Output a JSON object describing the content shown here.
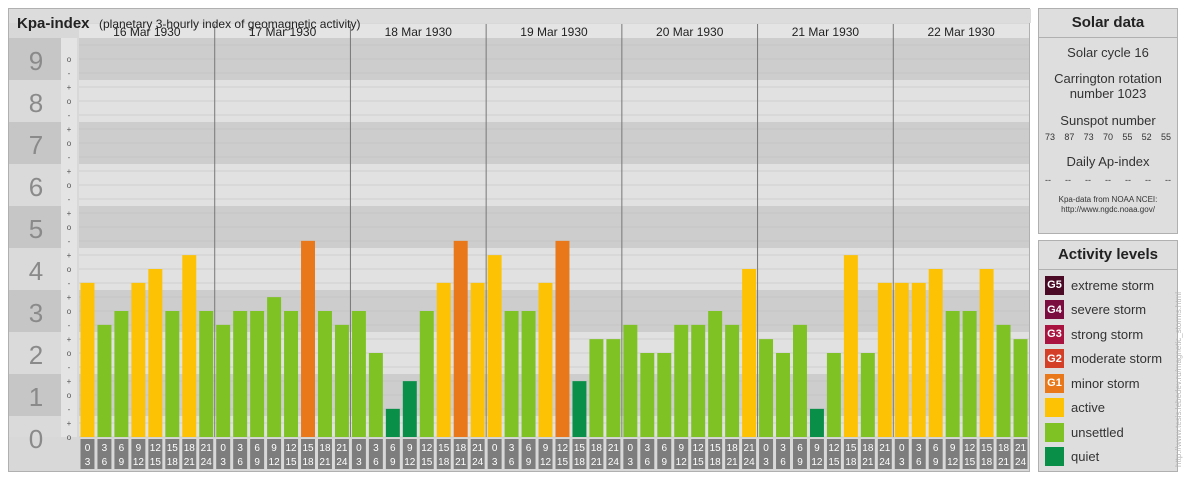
{
  "header": {
    "title": "Kpa-index",
    "subtitle": "(planetary 3-hourly index of geomagnetic activity)"
  },
  "chart_data": {
    "type": "bar",
    "ylim": [
      0,
      9
    ],
    "y_major_ticks": [
      "0",
      "1",
      "2",
      "3",
      "4",
      "5",
      "6",
      "7",
      "8",
      "9"
    ],
    "y_minor_ticks": [
      "-",
      "o",
      "+"
    ],
    "days": [
      "16 Mar 1930",
      "17 Mar 1930",
      "18 Mar 1930",
      "19 Mar 1930",
      "20 Mar 1930",
      "21 Mar 1930",
      "22 Mar 1930"
    ],
    "interval_top": [
      "0",
      "3",
      "6",
      "9",
      "12",
      "15",
      "18",
      "21"
    ],
    "interval_bottom": [
      "3",
      "6",
      "9",
      "12",
      "15",
      "18",
      "21",
      "24"
    ],
    "values": [
      [
        3.67,
        2.67,
        3.0,
        3.67,
        4.0,
        3.0,
        4.33,
        3.0
      ],
      [
        2.67,
        3.0,
        3.0,
        3.33,
        3.0,
        4.67,
        3.0,
        2.67
      ],
      [
        3.0,
        2.0,
        0.67,
        1.33,
        3.0,
        3.67,
        4.67,
        3.67
      ],
      [
        4.33,
        3.0,
        3.0,
        3.67,
        4.67,
        1.33,
        2.33,
        2.33
      ],
      [
        2.67,
        2.0,
        2.0,
        2.67,
        2.67,
        3.0,
        2.67,
        4.0
      ],
      [
        2.33,
        2.0,
        2.67,
        0.67,
        2.0,
        4.33,
        2.0,
        3.67
      ],
      [
        3.67,
        3.67,
        4.0,
        3.0,
        3.0,
        4.0,
        2.67,
        2.33
      ]
    ],
    "colors": {
      "quiet": "#0a8f48",
      "unsettled": "#7ec224",
      "active": "#fdc203",
      "minor_storm": "#e8781a",
      "moderate_storm": "#d43f27",
      "strong_storm": "#a9133f",
      "severe_storm": "#7b0c40",
      "extreme_storm": "#4a0a26"
    }
  },
  "solar": {
    "title": "Solar data",
    "cycle": "Solar cycle 16",
    "carrington_line1": "Carrington rotation",
    "carrington_line2": "number 1023",
    "sunspot_title": "Sunspot number",
    "sunspots": [
      "73",
      "87",
      "73",
      "70",
      "55",
      "52",
      "55"
    ],
    "ap_title": "Daily Ap-index",
    "ap_values": [
      "--",
      "--",
      "--",
      "--",
      "--",
      "--",
      "--"
    ],
    "source_line1": "Kpa-data from NOAA NCEI:",
    "source_line2": "http://www.ngdc.noaa.gov/"
  },
  "activity": {
    "title": "Activity levels",
    "levels": [
      {
        "badge": "G5",
        "label": "extreme storm",
        "color": "#4a0a26"
      },
      {
        "badge": "G4",
        "label": "severe storm",
        "color": "#7b0c40"
      },
      {
        "badge": "G3",
        "label": "strong storm",
        "color": "#a9133f"
      },
      {
        "badge": "G2",
        "label": "moderate storm",
        "color": "#d43f27"
      },
      {
        "badge": "G1",
        "label": "minor storm",
        "color": "#e8781a"
      },
      {
        "badge": "",
        "label": "active",
        "color": "#fdc203"
      },
      {
        "badge": "",
        "label": "unsettled",
        "color": "#7ec224"
      },
      {
        "badge": "",
        "label": "quiet",
        "color": "#0a8f48"
      }
    ]
  },
  "credit": "http://www.tesis.lebedev.ru/magnetic_storms.html"
}
